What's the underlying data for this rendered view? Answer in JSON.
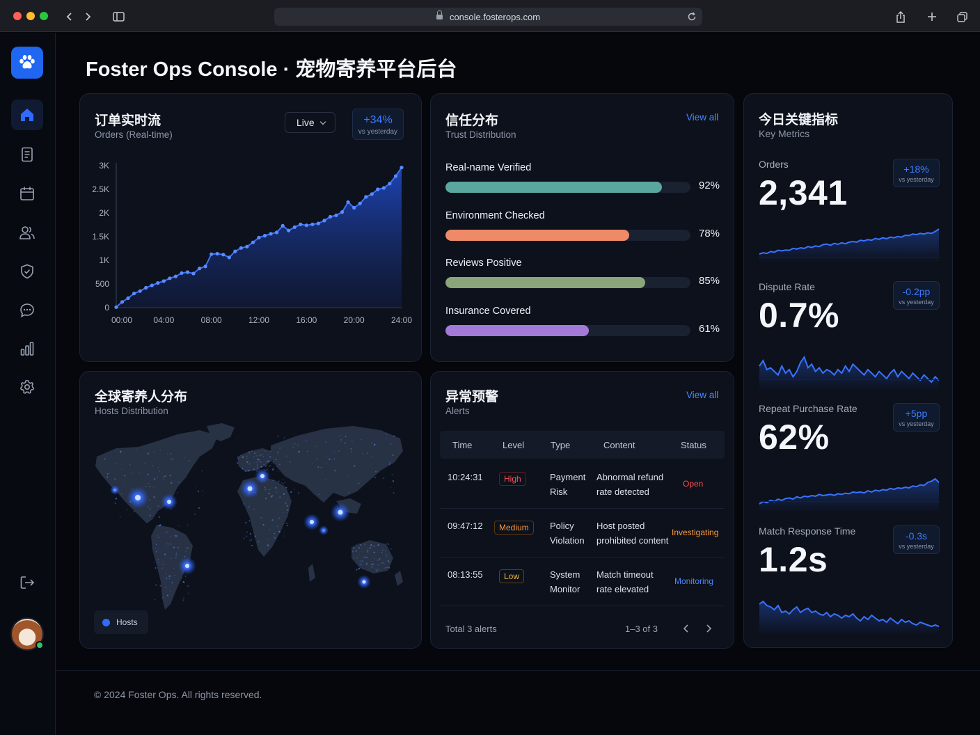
{
  "browser": {
    "url": "console.fosterops.com"
  },
  "page": {
    "title": "Foster Ops Console · 宠物寄养平台后台"
  },
  "orders_card": {
    "title": "订单实时流",
    "subtitle": "Orders (Real-time)",
    "live_label": "Live",
    "delta": "+34%",
    "delta_note": "vs yesterday"
  },
  "trust_card": {
    "title": "信任分布",
    "subtitle": "Trust Distribution",
    "view_all": "View all",
    "items": [
      {
        "label": "Real-name Verified",
        "value": 92,
        "display": "92%",
        "color": "#5aa7a0"
      },
      {
        "label": "Environment Checked",
        "value": 78,
        "display": "78%",
        "color": "#ee8a68"
      },
      {
        "label": "Reviews Positive",
        "value": 85,
        "display": "85%",
        "color": "#8aa57a"
      },
      {
        "label": "Insurance Covered",
        "value": 61,
        "display": "61%",
        "color": "#a47ad8"
      }
    ]
  },
  "metrics_card": {
    "title": "今日关键指标",
    "subtitle": "Key Metrics",
    "items": [
      {
        "label": "Orders",
        "value": "2,341",
        "delta": "+18%",
        "delta_note": "vs yesterday",
        "trend": [
          2,
          3,
          2.5,
          4,
          3.5,
          5,
          4.5,
          5.2,
          5,
          6.5,
          6,
          7,
          6.5,
          8,
          7.2,
          8.5,
          8,
          9.5,
          10,
          9,
          10.5,
          9.8,
          11,
          10.2,
          11.5,
          12,
          11.5,
          13,
          12.5,
          13.5,
          13,
          14.5,
          13.8,
          15,
          14.2,
          15.5,
          15,
          16,
          15.5,
          17,
          16.8,
          18,
          17.5,
          18.5,
          18,
          19,
          18.5,
          20,
          22
        ]
      },
      {
        "label": "Dispute Rate",
        "value": "0.7%",
        "delta": "-0.2pp",
        "delta_note": "vs yesterday",
        "trend": [
          15,
          18,
          13,
          14,
          12,
          10,
          15,
          11,
          13,
          9,
          12,
          17,
          20,
          14,
          16,
          12,
          14,
          11,
          13,
          12,
          10,
          13,
          11,
          15,
          12,
          16,
          14,
          12,
          10,
          13,
          11,
          9,
          12,
          10,
          8,
          11,
          13,
          9,
          12,
          10,
          8,
          11,
          9,
          7,
          10,
          8,
          6,
          9,
          7
        ]
      },
      {
        "label": "Repeat Purchase Rate",
        "value": "62%",
        "delta": "+5pp",
        "delta_note": "vs yesterday",
        "trend": [
          3,
          5,
          4,
          6,
          5,
          7,
          6,
          7.5,
          8,
          7,
          9,
          8,
          9.5,
          9,
          10,
          9.5,
          11,
          10,
          10.5,
          11,
          10.2,
          11.5,
          11,
          12,
          11.5,
          13,
          12.5,
          13,
          12.2,
          14,
          13,
          14.5,
          13.8,
          15,
          14.5,
          16,
          15.2,
          16.5,
          16,
          17,
          16.5,
          18,
          17.5,
          19,
          18.5,
          21,
          22,
          24,
          21
        ]
      },
      {
        "label": "Match Response Time",
        "value": "1.2s",
        "delta": "-0.3s",
        "delta_note": "vs yesterday",
        "trend": [
          20,
          22,
          19,
          18,
          16,
          19,
          14,
          15,
          13,
          16,
          18,
          14,
          16,
          17,
          14,
          15,
          13,
          12,
          14,
          11,
          13,
          12,
          10,
          12,
          11,
          13,
          10,
          8,
          11,
          9,
          12,
          10,
          8,
          9,
          7,
          10,
          8,
          6,
          9,
          7,
          8,
          6,
          5,
          7,
          6,
          5,
          4,
          5,
          4
        ]
      }
    ]
  },
  "hosts_card": {
    "title": "全球寄养人分布",
    "subtitle": "Hosts Distribution",
    "legend": "Hosts"
  },
  "alerts_card": {
    "title": "异常预警",
    "subtitle": "Alerts",
    "view_all": "View all",
    "columns": [
      "Time",
      "Level",
      "Type",
      "Content",
      "Status"
    ],
    "rows": [
      {
        "time": "10:24:31",
        "level": "High",
        "type1": "Payment",
        "type2": "Risk",
        "content1": "Abnormal refund",
        "content2": "rate detected",
        "status": "Open"
      },
      {
        "time": "09:47:12",
        "level": "Medium",
        "type1": "Policy",
        "type2": "Violation",
        "content1": "Host posted",
        "content2": "prohibited content",
        "status": "Investigating"
      },
      {
        "time": "08:13:55",
        "level": "Low",
        "type1": "System",
        "type2": "Monitor",
        "content1": "Match timeout",
        "content2": "rate elevated",
        "status": "Monitoring"
      }
    ],
    "total": "Total  3 alerts",
    "range": "1–3  of  3"
  },
  "footer": {
    "text": "© 2024  Foster Ops.  All rights reserved."
  },
  "chart_data": {
    "type": "area",
    "title": "",
    "xlabel": "",
    "ylabel": "",
    "x_ticks": [
      "00:00",
      "04:00",
      "08:00",
      "12:00",
      "16:00",
      "20:00",
      "24:00"
    ],
    "y_ticks": [
      "0",
      "500",
      "1K",
      "1.5K",
      "2K",
      "2.5K",
      "3K"
    ],
    "xlim": [
      0,
      24
    ],
    "ylim": [
      0,
      3000
    ],
    "series": [
      {
        "x": [
          0,
          0.5,
          1,
          1.5,
          2,
          2.5,
          3,
          3.5,
          4,
          4.5,
          5,
          5.5,
          6,
          6.5,
          7,
          7.5,
          8,
          8.5,
          9,
          9.5,
          10,
          10.5,
          11,
          11.5,
          12,
          12.5,
          13,
          13.5,
          14,
          14.5,
          15,
          15.5,
          16,
          16.5,
          17,
          17.5,
          18,
          18.5,
          19,
          19.5,
          20,
          20.5,
          21,
          21.5,
          22,
          22.5,
          23,
          23.5,
          24
        ],
        "y": [
          10,
          120,
          200,
          300,
          350,
          420,
          470,
          520,
          560,
          620,
          660,
          730,
          750,
          720,
          830,
          870,
          1130,
          1140,
          1120,
          1060,
          1190,
          1260,
          1290,
          1380,
          1480,
          1520,
          1560,
          1590,
          1730,
          1630,
          1700,
          1760,
          1740,
          1760,
          1780,
          1840,
          1920,
          1950,
          2020,
          2230,
          2110,
          2200,
          2340,
          2400,
          2500,
          2530,
          2620,
          2780,
          2960
        ]
      }
    ]
  }
}
